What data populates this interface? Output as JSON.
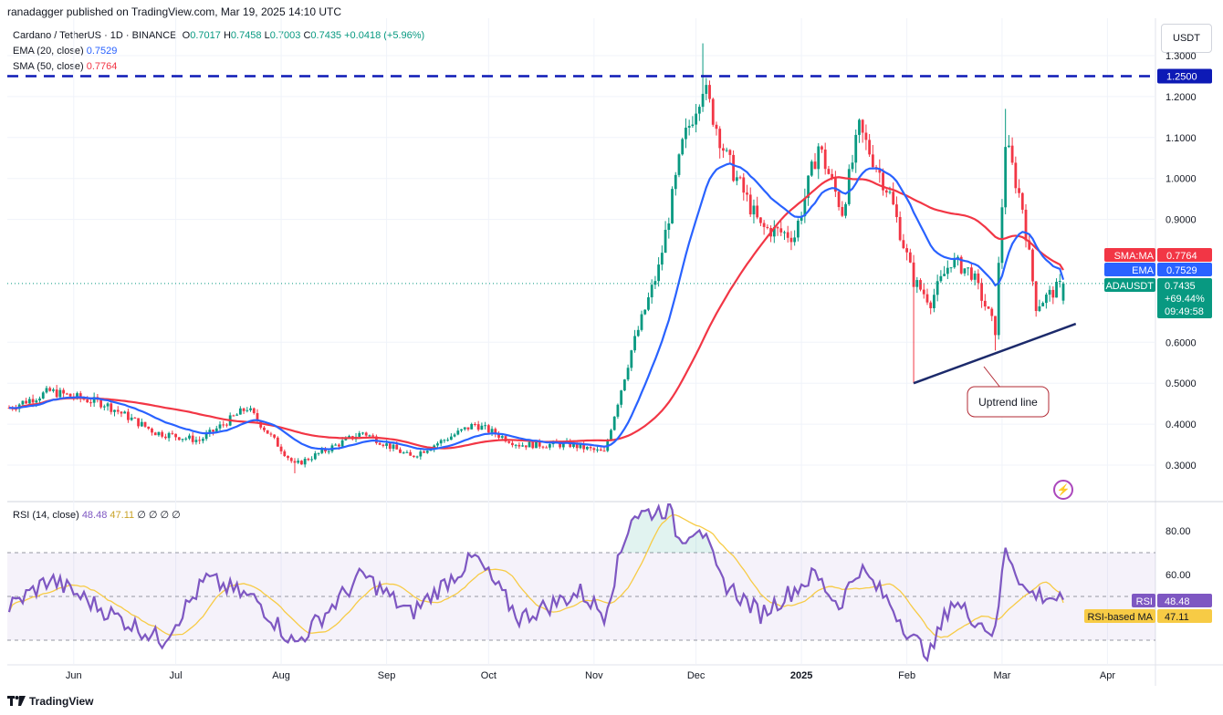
{
  "header": {
    "publish_line": "ranadagger published on TradingView.com, Mar 19, 2025 14:10 UTC"
  },
  "legend": {
    "symbol": "Cardano / TetherUS · 1D · BINANCE",
    "open_label": "O",
    "open": "0.7017",
    "high_label": "H",
    "high": "0.7458",
    "low_label": "L",
    "low": "0.7003",
    "close_label": "C",
    "close": "0.7435",
    "change": "+0.0418 (+5.96%)",
    "ema_label": "EMA (20, close)",
    "ema_value": "0.7529",
    "sma_label": "SMA (50, close)",
    "sma_value": "0.7764"
  },
  "currency_button": "USDT",
  "price_scale": {
    "ticks": [
      "1.3000",
      "1.2000",
      "1.1000",
      "1.0000",
      "0.9000",
      "0.6000",
      "0.5000",
      "0.4000",
      "0.3000"
    ],
    "level_tag": "1.2500",
    "sma_tag_label": "SMA:MA",
    "sma_tag_value": "0.7764",
    "ema_tag_label": "EMA",
    "ema_tag_value": "0.7529",
    "price_tag_label": "ADAUSDT",
    "price_tag_value": "0.7435",
    "price_tag_change": "+69.44%",
    "price_tag_timer": "09:49:58"
  },
  "annotation": {
    "uptrend_label": "Uptrend line"
  },
  "rsi": {
    "label": "RSI (14, close)",
    "value": "48.48",
    "ma_value": "47.11",
    "extra": "∅ ∅ ∅ ∅",
    "ticks": [
      "80.00",
      "60.00"
    ],
    "rsi_tag_label": "RSI",
    "rsi_tag_value": "48.48",
    "ma_tag_label": "RSI-based MA",
    "ma_tag_value": "47.11"
  },
  "time_axis": [
    "Jun",
    "Jul",
    "Aug",
    "Sep",
    "Oct",
    "Nov",
    "Dec",
    "2025",
    "Feb",
    "Mar",
    "Apr"
  ],
  "footer": {
    "brand": "TradingView"
  },
  "colors": {
    "up": "#089981",
    "down": "#f23645",
    "ema": "#2962ff",
    "sma": "#f23645",
    "level": "#0d1ab6",
    "trendline": "#1c2a6b",
    "rsi": "#7e57c2",
    "rsi_ma": "#f7cb45",
    "annotation": "#b22833"
  },
  "chart_data": [
    {
      "type": "candlestick",
      "title": "Cardano / TetherUS · 1D · BINANCE",
      "ylim": [
        0.26,
        1.33
      ],
      "x": [
        "2024-05-13",
        "2025-03-19"
      ],
      "anchors": [
        {
          "date": "2024-05-13",
          "close": 0.44
        },
        {
          "date": "2024-05-25",
          "close": 0.48
        },
        {
          "date": "2024-06-10",
          "close": 0.45
        },
        {
          "date": "2024-06-25",
          "close": 0.38
        },
        {
          "date": "2024-07-08",
          "close": 0.36
        },
        {
          "date": "2024-07-22",
          "close": 0.44
        },
        {
          "date": "2024-08-05",
          "close": 0.3
        },
        {
          "date": "2024-08-25",
          "close": 0.38
        },
        {
          "date": "2024-09-08",
          "close": 0.32
        },
        {
          "date": "2024-09-27",
          "close": 0.4
        },
        {
          "date": "2024-10-10",
          "close": 0.35
        },
        {
          "date": "2024-10-25",
          "close": 0.35
        },
        {
          "date": "2024-11-04",
          "close": 0.33
        },
        {
          "date": "2024-11-12",
          "close": 0.58
        },
        {
          "date": "2024-11-20",
          "close": 0.78
        },
        {
          "date": "2024-11-27",
          "close": 1.08
        },
        {
          "date": "2024-12-03",
          "close": 1.23
        },
        {
          "date": "2024-12-10",
          "close": 1.05
        },
        {
          "date": "2024-12-20",
          "close": 0.88
        },
        {
          "date": "2024-12-30",
          "close": 0.86
        },
        {
          "date": "2025-01-06",
          "close": 1.08
        },
        {
          "date": "2025-01-13",
          "close": 0.92
        },
        {
          "date": "2025-01-18",
          "close": 1.12
        },
        {
          "date": "2025-01-27",
          "close": 0.96
        },
        {
          "date": "2025-02-03",
          "close": 0.75
        },
        {
          "date": "2025-02-08",
          "close": 0.7
        },
        {
          "date": "2025-02-14",
          "close": 0.8
        },
        {
          "date": "2025-02-20",
          "close": 0.77
        },
        {
          "date": "2025-02-27",
          "close": 0.63
        },
        {
          "date": "2025-03-02",
          "close": 1.09
        },
        {
          "date": "2025-03-07",
          "close": 0.93
        },
        {
          "date": "2025-03-11",
          "close": 0.69
        },
        {
          "date": "2025-03-19",
          "close": 0.7435
        }
      ],
      "ema": {
        "name": "EMA (20, close)",
        "last": 0.7529
      },
      "sma": {
        "name": "SMA (50, close)",
        "last": 0.7764
      },
      "horizontal_level": 1.25,
      "trendline": [
        {
          "date": "2025-02-03",
          "price": 0.5
        },
        {
          "date": "2025-03-20",
          "price": 0.645
        }
      ],
      "annotations": [
        "Uptrend line"
      ]
    },
    {
      "type": "line",
      "title": "RSI (14, close)",
      "ylim": [
        22,
        92
      ],
      "bands": [
        30,
        50,
        70
      ],
      "anchors": [
        {
          "date": "2024-05-13",
          "rsi": 45
        },
        {
          "date": "2024-05-25",
          "rsi": 58
        },
        {
          "date": "2024-06-12",
          "rsi": 42
        },
        {
          "date": "2024-06-27",
          "rsi": 30
        },
        {
          "date": "2024-07-10",
          "rsi": 58
        },
        {
          "date": "2024-07-25",
          "rsi": 48
        },
        {
          "date": "2024-08-05",
          "rsi": 28
        },
        {
          "date": "2024-08-25",
          "rsi": 60
        },
        {
          "date": "2024-09-08",
          "rsi": 42
        },
        {
          "date": "2024-09-27",
          "rsi": 68
        },
        {
          "date": "2024-10-10",
          "rsi": 40
        },
        {
          "date": "2024-10-28",
          "rsi": 52
        },
        {
          "date": "2024-11-04",
          "rsi": 42
        },
        {
          "date": "2024-11-12",
          "rsi": 87
        },
        {
          "date": "2024-11-23",
          "rsi": 90
        },
        {
          "date": "2024-11-26",
          "rsi": 76
        },
        {
          "date": "2024-12-02",
          "rsi": 83
        },
        {
          "date": "2024-12-08",
          "rsi": 58
        },
        {
          "date": "2024-12-20",
          "rsi": 42
        },
        {
          "date": "2025-01-05",
          "rsi": 60
        },
        {
          "date": "2025-01-12",
          "rsi": 46
        },
        {
          "date": "2025-01-18",
          "rsi": 63
        },
        {
          "date": "2025-01-27",
          "rsi": 47
        },
        {
          "date": "2025-02-03",
          "rsi": 30
        },
        {
          "date": "2025-02-08",
          "rsi": 24
        },
        {
          "date": "2025-02-14",
          "rsi": 48
        },
        {
          "date": "2025-02-27",
          "rsi": 33
        },
        {
          "date": "2025-03-02",
          "rsi": 73
        },
        {
          "date": "2025-03-08",
          "rsi": 52
        },
        {
          "date": "2025-03-19",
          "rsi": 48.48
        }
      ],
      "ma": {
        "name": "RSI-based MA",
        "last": 47.11
      }
    }
  ]
}
